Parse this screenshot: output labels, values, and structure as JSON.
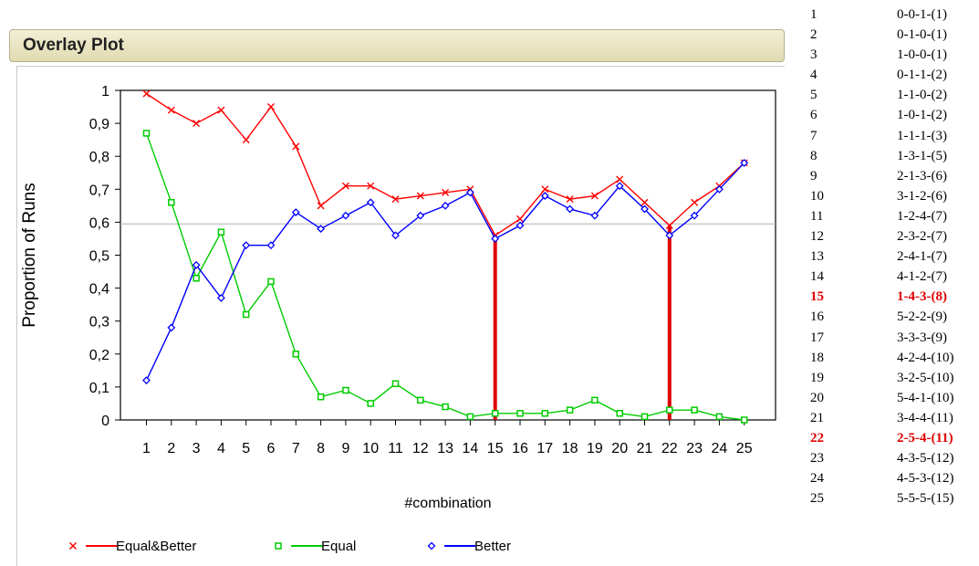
{
  "panel": {
    "title": "Overlay Plot"
  },
  "chart_data": {
    "type": "line",
    "categories": [
      "1",
      "2",
      "3",
      "4",
      "5",
      "6",
      "7",
      "8",
      "9",
      "10",
      "11",
      "12",
      "13",
      "14",
      "15",
      "16",
      "17",
      "18",
      "19",
      "20",
      "21",
      "22",
      "23",
      "24",
      "25"
    ],
    "xlabel": "#combination",
    "ylabel": "Proportion of Runs",
    "ylim": [
      0,
      1
    ],
    "yticks": [
      "0",
      "0,1",
      "0,2",
      "0,3",
      "0,4",
      "0,5",
      "0,6",
      "0,7",
      "0,8",
      "0,9",
      "1"
    ],
    "reference_line": 0.595,
    "highlight_x": [
      15,
      22
    ],
    "series": [
      {
        "name": "Equal&Better",
        "color": "#ff0000",
        "marker": "x",
        "values": [
          0.99,
          0.94,
          0.9,
          0.94,
          0.85,
          0.95,
          0.83,
          0.65,
          0.71,
          0.71,
          0.67,
          0.68,
          0.69,
          0.7,
          0.56,
          0.61,
          0.7,
          0.67,
          0.68,
          0.73,
          0.66,
          0.59,
          0.66,
          0.71,
          0.78
        ]
      },
      {
        "name": "Equal",
        "color": "#00cc00",
        "marker": "square",
        "values": [
          0.87,
          0.66,
          0.43,
          0.57,
          0.32,
          0.42,
          0.2,
          0.07,
          0.09,
          0.05,
          0.11,
          0.06,
          0.04,
          0.01,
          0.02,
          0.02,
          0.02,
          0.03,
          0.06,
          0.02,
          0.01,
          0.03,
          0.03,
          0.01,
          0.0
        ]
      },
      {
        "name": "Better",
        "color": "#0000ff",
        "marker": "diamond",
        "values": [
          0.12,
          0.28,
          0.47,
          0.37,
          0.53,
          0.53,
          0.63,
          0.58,
          0.62,
          0.66,
          0.56,
          0.62,
          0.65,
          0.69,
          0.55,
          0.59,
          0.68,
          0.64,
          0.62,
          0.71,
          0.64,
          0.56,
          0.62,
          0.7,
          0.78
        ]
      }
    ],
    "legend_position": "bottom"
  },
  "table": {
    "rows": [
      {
        "idx": "1",
        "combo": "0-0-1-(1)"
      },
      {
        "idx": "2",
        "combo": "0-1-0-(1)"
      },
      {
        "idx": "3",
        "combo": "1-0-0-(1)"
      },
      {
        "idx": "4",
        "combo": "0-1-1-(2)"
      },
      {
        "idx": "5",
        "combo": "1-1-0-(2)"
      },
      {
        "idx": "6",
        "combo": "1-0-1-(2)"
      },
      {
        "idx": "7",
        "combo": "1-1-1-(3)"
      },
      {
        "idx": "8",
        "combo": "1-3-1-(5)"
      },
      {
        "idx": "9",
        "combo": "2-1-3-(6)"
      },
      {
        "idx": "10",
        "combo": "3-1-2-(6)"
      },
      {
        "idx": "11",
        "combo": "1-2-4-(7)"
      },
      {
        "idx": "12",
        "combo": "2-3-2-(7)"
      },
      {
        "idx": "13",
        "combo": "2-4-1-(7)"
      },
      {
        "idx": "14",
        "combo": "4-1-2-(7)"
      },
      {
        "idx": "15",
        "combo": "1-4-3-(8)",
        "highlight": true
      },
      {
        "idx": "16",
        "combo": "5-2-2-(9)"
      },
      {
        "idx": "17",
        "combo": "3-3-3-(9)"
      },
      {
        "idx": "18",
        "combo": "4-2-4-(10)"
      },
      {
        "idx": "19",
        "combo": "3-2-5-(10)"
      },
      {
        "idx": "20",
        "combo": "5-4-1-(10)"
      },
      {
        "idx": "21",
        "combo": "3-4-4-(11)"
      },
      {
        "idx": "22",
        "combo": "2-5-4-(11)",
        "highlight": true
      },
      {
        "idx": "23",
        "combo": "4-3-5-(12)"
      },
      {
        "idx": "24",
        "combo": "4-5-3-(12)"
      },
      {
        "idx": "25",
        "combo": "5-5-5-(15)"
      }
    ]
  }
}
